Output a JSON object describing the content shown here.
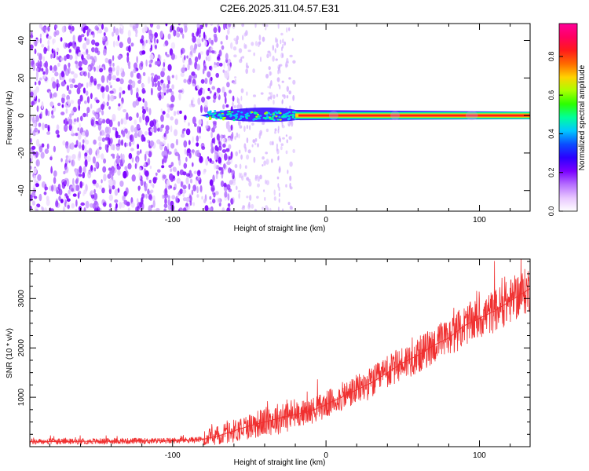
{
  "title": "C2E6.2025.311.04.57.E31",
  "chart_data": [
    {
      "type": "heatmap",
      "xlabel": "Height of straight line (km)",
      "ylabel": "Frequency (Hz)",
      "xlim": [
        -193,
        133
      ],
      "ylim": [
        -51,
        49
      ],
      "xticks": [
        -100,
        0,
        100
      ],
      "yticks": [
        -40,
        -20,
        0,
        20,
        40
      ],
      "colorbar": {
        "label": "Normalized spectral amplitude",
        "range": [
          0,
          0.97
        ],
        "ticks": [
          "0.0",
          "0.2",
          "0.4",
          "0.6",
          "0.8"
        ],
        "colors": [
          "#ffffff",
          "#e8c6ff",
          "#b56dff",
          "#7a00ff",
          "#2a00ff",
          "#0a4dff",
          "#00c8ff",
          "#00ff9a",
          "#2bff00",
          "#aaff00",
          "#ffd200",
          "#ff6a00",
          "#ff1a1a",
          "#ff0060",
          "#ff0099"
        ]
      },
      "features": {
        "noise_region_x": [
          -193,
          -60
        ],
        "sparse_region_x": [
          -60,
          -20
        ],
        "signal_start_x": -82,
        "signal_center_freq": 0,
        "strong_band_x": [
          -20,
          133
        ]
      }
    },
    {
      "type": "line",
      "xlabel": "Height of straight line (km)",
      "ylabel": "SNR (10 * v/v)",
      "xlim": [
        -193,
        133
      ],
      "ylim": [
        0,
        3800
      ],
      "xticks": [
        -100,
        0,
        100
      ],
      "yticks": [
        1000,
        2000,
        3000
      ],
      "series": [
        {
          "color": "#f03030",
          "x": [
            -193,
            -150,
            -100,
            -80,
            -70,
            -60,
            -50,
            -40,
            -30,
            -20,
            -10,
            0,
            10,
            20,
            30,
            40,
            50,
            60,
            70,
            80,
            90,
            100,
            110,
            120,
            133
          ],
          "y": [
            100,
            110,
            120,
            150,
            220,
            320,
            420,
            500,
            580,
            650,
            720,
            850,
            1000,
            1150,
            1300,
            1500,
            1700,
            1850,
            2050,
            2200,
            2450,
            2600,
            2750,
            2950,
            3200
          ]
        }
      ]
    }
  ]
}
